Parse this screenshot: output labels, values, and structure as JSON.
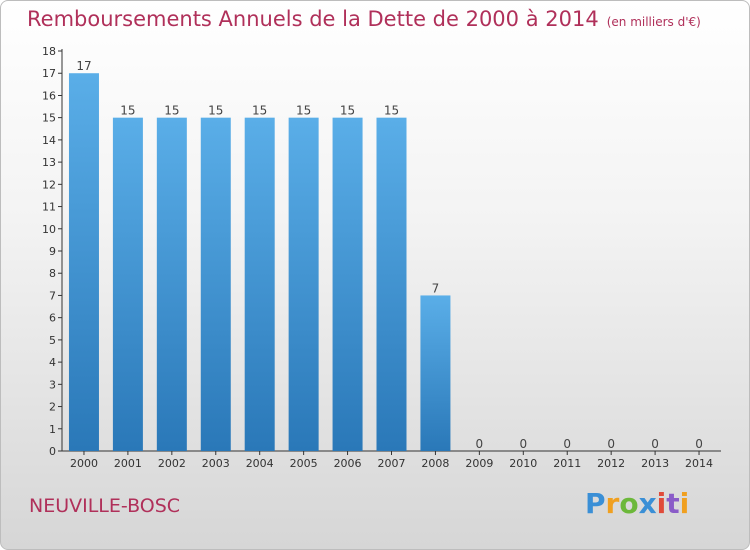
{
  "header": {
    "title": "Remboursements Annuels de la Dette de 2000 à 2014",
    "unit": "(en milliers d'€)"
  },
  "footer": {
    "commune": "NEUVILLE-BOSC",
    "brand": "Proxiti"
  },
  "colors": {
    "bar_top": "#5aaee8",
    "bar_bottom": "#2a78b8",
    "accent": "#b0305a"
  },
  "chart_data": {
    "type": "bar",
    "title": "Remboursements Annuels de la Dette de 2000 à 2014",
    "subtitle": "(en milliers d'€)",
    "categories": [
      "2000",
      "2001",
      "2002",
      "2003",
      "2004",
      "2005",
      "2006",
      "2007",
      "2008",
      "2009",
      "2010",
      "2011",
      "2012",
      "2013",
      "2014"
    ],
    "values": [
      17,
      15,
      15,
      15,
      15,
      15,
      15,
      15,
      7,
      0,
      0,
      0,
      0,
      0,
      0
    ],
    "data_labels": [
      "17",
      "15",
      "15",
      "15",
      "15",
      "15",
      "15",
      "15",
      "7",
      "0",
      "0",
      "0",
      "0",
      "0",
      "0"
    ],
    "xlabel": "",
    "ylabel": "",
    "ylim": [
      0,
      18
    ],
    "yticks": [
      "0",
      "1",
      "2",
      "3",
      "4",
      "5",
      "6",
      "7",
      "8",
      "9",
      "10",
      "11",
      "12",
      "13",
      "14",
      "15",
      "16",
      "17",
      "18"
    ],
    "grid": false,
    "legend": "none"
  }
}
